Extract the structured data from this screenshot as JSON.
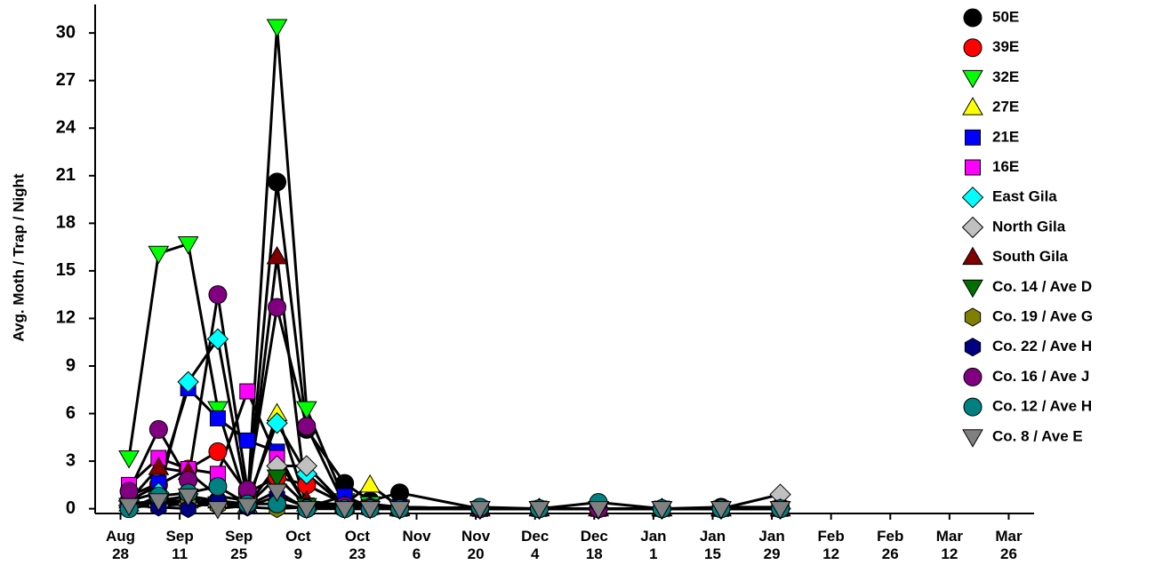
{
  "chart_data": {
    "type": "line",
    "y_label": "Avg. Moth / Trap / Night",
    "x": [
      "Aug 30",
      "Sep 6",
      "Sep 13",
      "Sep 20",
      "Sep 27",
      "Oct 4",
      "Oct 11",
      "Oct 20",
      "Oct 26",
      "Nov 2",
      "Nov 21",
      "Dec 5",
      "Dec 19",
      "Jan 3",
      "Jan 17",
      "Jan 31"
    ],
    "xlim": [
      "Aug 22",
      "Apr 1"
    ],
    "xticks": [
      "Aug 28",
      "Sep 11",
      "Sep 25",
      "Oct 9",
      "Oct 23",
      "Nov 6",
      "Nov 20",
      "Dec 4",
      "Dec 18",
      "Jan 1",
      "Jan 15",
      "Jan 29",
      "Feb 12",
      "Feb 26",
      "Mar 12",
      "Mar 26"
    ],
    "ylim": [
      -0.3,
      31.8
    ],
    "yticks": [
      0,
      3,
      6,
      9,
      12,
      15,
      18,
      21,
      24,
      27,
      30
    ],
    "line_color": "#000000",
    "series": [
      {
        "name": "50E",
        "color": "#000000",
        "marker": "circle",
        "values": [
          0.3,
          0.5,
          0.8,
          0.5,
          0.3,
          20.6,
          5.0,
          1.6,
          0.5,
          1.0,
          0,
          0,
          0,
          0,
          0.1,
          0.1
        ]
      },
      {
        "name": "39E",
        "color": "#ff0000",
        "marker": "circle",
        "values": [
          0.5,
          1.5,
          2.5,
          3.6,
          1.0,
          2.0,
          1.5,
          0.3,
          0.2,
          0.1,
          0,
          0,
          0,
          0,
          0,
          0
        ]
      },
      {
        "name": "32E",
        "color": "#00ff00",
        "marker": "triangle-down",
        "values": [
          3.2,
          16.1,
          16.7,
          6.3,
          0.3,
          30.4,
          6.3,
          0.5,
          0.3,
          0.1,
          0,
          0,
          0,
          0,
          0,
          0
        ]
      },
      {
        "name": "27E",
        "color": "#ffff00",
        "marker": "triangle-up",
        "values": [
          0.3,
          0.5,
          0.5,
          0.5,
          0.2,
          6.0,
          0.3,
          0.3,
          1.5,
          0.1,
          0,
          0,
          0,
          0,
          0,
          0
        ]
      },
      {
        "name": "21E",
        "color": "#0000ff",
        "marker": "square",
        "values": [
          0.8,
          1.6,
          7.6,
          5.7,
          4.3,
          3.6,
          0.1,
          0.8,
          0.1,
          0.1,
          0,
          0,
          0,
          0,
          0,
          0
        ]
      },
      {
        "name": "16E",
        "color": "#ff00ff",
        "marker": "square",
        "values": [
          1.5,
          3.2,
          2.5,
          2.2,
          7.4,
          3.2,
          0.2,
          0.1,
          0.1,
          0,
          0,
          0,
          0,
          0,
          0,
          0
        ]
      },
      {
        "name": "East Gila",
        "color": "#00ffff",
        "marker": "diamond",
        "values": [
          0.5,
          1.0,
          8.0,
          10.7,
          0.5,
          5.4,
          2.2,
          0.2,
          0.1,
          0,
          0,
          0,
          0,
          0,
          0,
          0
        ]
      },
      {
        "name": "North Gila",
        "color": "#c0c0c0",
        "marker": "diamond",
        "values": [
          0.2,
          0.2,
          0.3,
          0.2,
          0.2,
          2.7,
          2.7,
          0.2,
          0.1,
          0,
          0,
          0,
          0,
          0,
          0,
          0.9
        ]
      },
      {
        "name": "South Gila",
        "color": "#800000",
        "marker": "triangle-up",
        "values": [
          0.5,
          2.6,
          2.3,
          0.8,
          0.5,
          15.9,
          0.5,
          0.2,
          0.1,
          0,
          0,
          0,
          0,
          0,
          0,
          0
        ]
      },
      {
        "name": "Co. 14 / Ave D",
        "color": "#007000",
        "marker": "triangle-down",
        "values": [
          0.2,
          0.3,
          0.5,
          0.3,
          0.2,
          2.0,
          0.2,
          0.1,
          0,
          0,
          0,
          0,
          0,
          0,
          0,
          0
        ]
      },
      {
        "name": "Co. 19 / Ave G",
        "color": "#808000",
        "marker": "hexagon",
        "values": [
          0.1,
          0.2,
          0.3,
          0.2,
          0.1,
          0,
          0.1,
          0,
          0,
          0,
          0,
          0,
          0,
          0,
          0,
          0
        ]
      },
      {
        "name": "Co. 22 / Ave H",
        "color": "#000080",
        "marker": "hexagon",
        "values": [
          0.2,
          0.1,
          0,
          0.5,
          0.1,
          0.8,
          0.1,
          0,
          0,
          0,
          0,
          0,
          0,
          0,
          0,
          0
        ]
      },
      {
        "name": "Co. 16 / Ave J",
        "color": "#800080",
        "marker": "circle",
        "values": [
          1.1,
          5.0,
          1.8,
          13.5,
          1.2,
          12.7,
          5.2,
          0.2,
          0.1,
          0,
          0,
          0,
          0,
          0,
          0,
          0
        ]
      },
      {
        "name": "Co. 12 / Ave H",
        "color": "#008080",
        "marker": "circle",
        "values": [
          0,
          0.8,
          1.0,
          1.4,
          0.3,
          0.3,
          0,
          0,
          0,
          0,
          0.1,
          0,
          0.4,
          0,
          0,
          0
        ]
      },
      {
        "name": "Co. 8 / Ave E",
        "color": "#808080",
        "marker": "triangle-down",
        "values": [
          0.2,
          0.5,
          0.8,
          0,
          0.2,
          1.1,
          0,
          0,
          0,
          0,
          0,
          0,
          0,
          0,
          0,
          0
        ]
      }
    ]
  }
}
